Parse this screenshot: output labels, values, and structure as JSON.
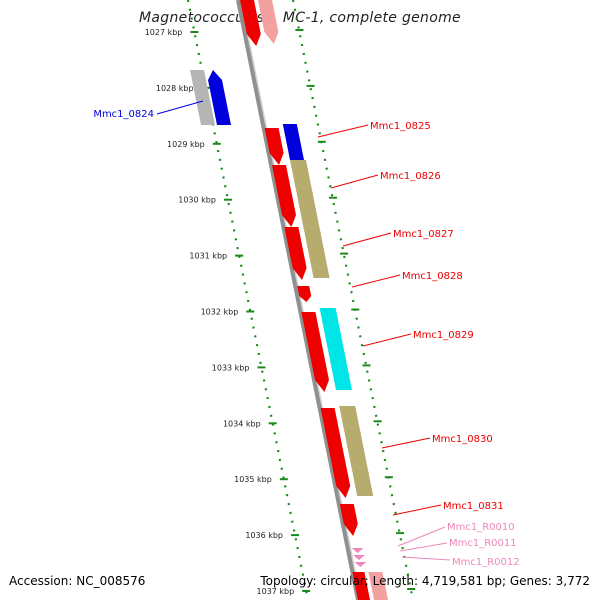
{
  "title": "Magnetococcus sp. MC-1, complete genome",
  "footer": {
    "accession": "Accession: NC_008576",
    "summary": "Topology: circular; Length: 4,719,581 bp; Genes: 3,772"
  },
  "colors": {
    "red": "#ee0000",
    "blue": "#0000dd",
    "olive": "#b5ac6e",
    "cyan": "#00e5e5",
    "gray": "#b5b5b5",
    "pink": "#ee88bb",
    "pinkLabel": "#ee88bb",
    "tickGreen": "#1a8a1a",
    "backbone": "#909090"
  },
  "ticks": [
    "1027 kbp",
    "1028 kbp",
    "1029 kbp",
    "1030 kbp",
    "1031 kbp",
    "1032 kbp",
    "1033 kbp",
    "1034 kbp",
    "1035 kbp",
    "1036 kbp",
    "1037 kbp"
  ],
  "labels": [
    {
      "text": "Mmc1_0824",
      "color": "blue"
    },
    {
      "text": "Mmc1_0825",
      "color": "red"
    },
    {
      "text": "Mmc1_0826",
      "color": "red"
    },
    {
      "text": "Mmc1_0827",
      "color": "red"
    },
    {
      "text": "Mmc1_0828",
      "color": "red"
    },
    {
      "text": "Mmc1_0829",
      "color": "red"
    },
    {
      "text": "Mmc1_0830",
      "color": "red"
    },
    {
      "text": "Mmc1_0831",
      "color": "red"
    },
    {
      "text": "Mmc1_R0010",
      "color": "pink"
    },
    {
      "text": "Mmc1_R0011",
      "color": "pink"
    },
    {
      "text": "Mmc1_R0012",
      "color": "pink"
    }
  ]
}
